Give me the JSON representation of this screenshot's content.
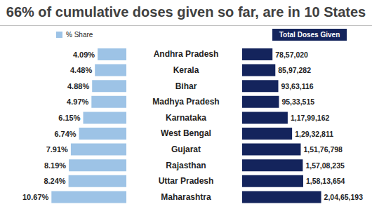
{
  "title": "66% of cumulative doses given so far, are in 10 States",
  "chart_data": [
    {
      "type": "bar",
      "title": "% Share",
      "orientation": "horizontal",
      "categories": [
        "Andhra Pradesh",
        "Kerala",
        "Bihar",
        "Madhya Pradesh",
        "Karnataka",
        "West Bengal",
        "Gujarat",
        "Rajasthan",
        "Uttar Pradesh",
        "Maharashtra"
      ],
      "values": [
        4.09,
        4.48,
        4.88,
        4.97,
        6.15,
        6.74,
        7.91,
        8.19,
        8.24,
        10.67
      ],
      "value_labels": [
        "4.09%",
        "4.48%",
        "4.88%",
        "4.97%",
        "6.15%",
        "6.74%",
        "7.91%",
        "8.19%",
        "8.24%",
        "10.67%"
      ],
      "color": "#9dc3e6",
      "xlim": [
        0,
        14
      ],
      "data_labels": true,
      "tick_labels": false
    },
    {
      "type": "bar",
      "title": "Total Doses Given",
      "orientation": "horizontal",
      "categories": [
        "Andhra Pradesh",
        "Kerala",
        "Bihar",
        "Madhya Pradesh",
        "Karnataka",
        "West Bengal",
        "Gujarat",
        "Rajasthan",
        "Uttar Pradesh",
        "Maharashtra"
      ],
      "values": [
        7857020,
        8597282,
        9363116,
        9533515,
        11799162,
        12932811,
        15176798,
        15708235,
        15813654,
        20465193
      ],
      "value_labels": [
        "78,57,020",
        "85,97,282",
        "93,63,116",
        "95,33,515",
        "1,17,99,162",
        "1,29,32,811",
        "1,51,76,798",
        "1,57,08,235",
        "1,58,13,654",
        "2,04,65,193"
      ],
      "color": "#14245c",
      "xlim": [
        0,
        22000000
      ],
      "data_labels": true,
      "tick_labels": "y"
    }
  ]
}
